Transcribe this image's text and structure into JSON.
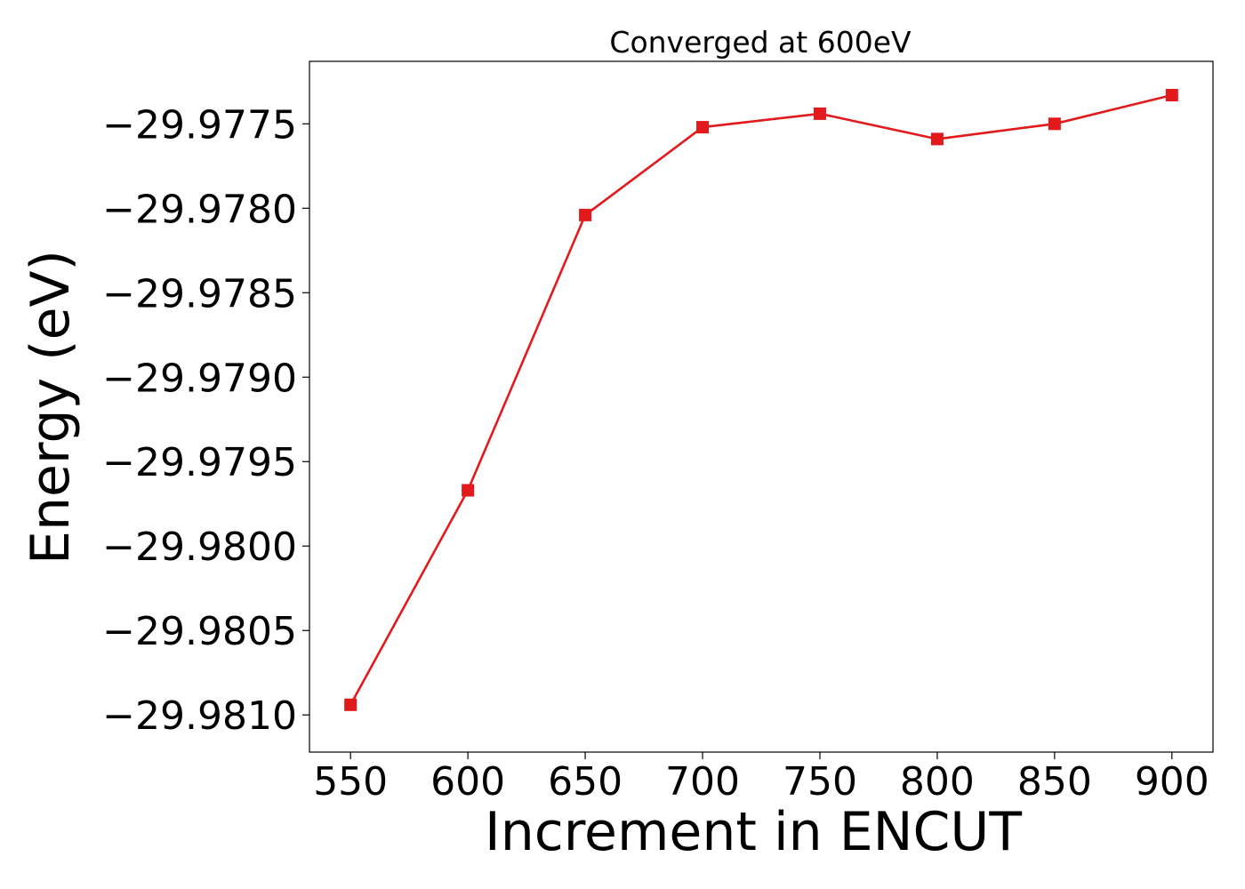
{
  "chart_data": {
    "type": "line",
    "title": "Converged at 600eV",
    "xlabel": "Increment in ENCUT",
    "ylabel": "Energy (eV)",
    "x": [
      550,
      600,
      650,
      700,
      750,
      800,
      850,
      900
    ],
    "x_ticks": [
      550,
      600,
      650,
      700,
      750,
      800,
      850,
      900
    ],
    "x_tick_labels": [
      "550",
      "600",
      "650",
      "700",
      "750",
      "800",
      "850",
      "900"
    ],
    "xlim": [
      532.5,
      917.5
    ],
    "y_ticks": [
      -29.9775,
      -29.978,
      -29.9785,
      -29.979,
      -29.9795,
      -29.98,
      -29.9805,
      -29.981
    ],
    "y_tick_labels": [
      "−29.9775",
      "−29.9780",
      "−29.9785",
      "−29.9790",
      "−29.9795",
      "−29.9800",
      "−29.9805",
      "−29.9810"
    ],
    "ylim": [
      -29.98122,
      -29.97713
    ],
    "series": [
      {
        "values": [
          -29.98094,
          -29.97967,
          -29.97804,
          -29.97752,
          -29.97744,
          -29.97759,
          -29.9775,
          -29.97733
        ],
        "color": "#e31a1c",
        "marker": "square"
      }
    ],
    "grid": false,
    "legend": "none"
  }
}
